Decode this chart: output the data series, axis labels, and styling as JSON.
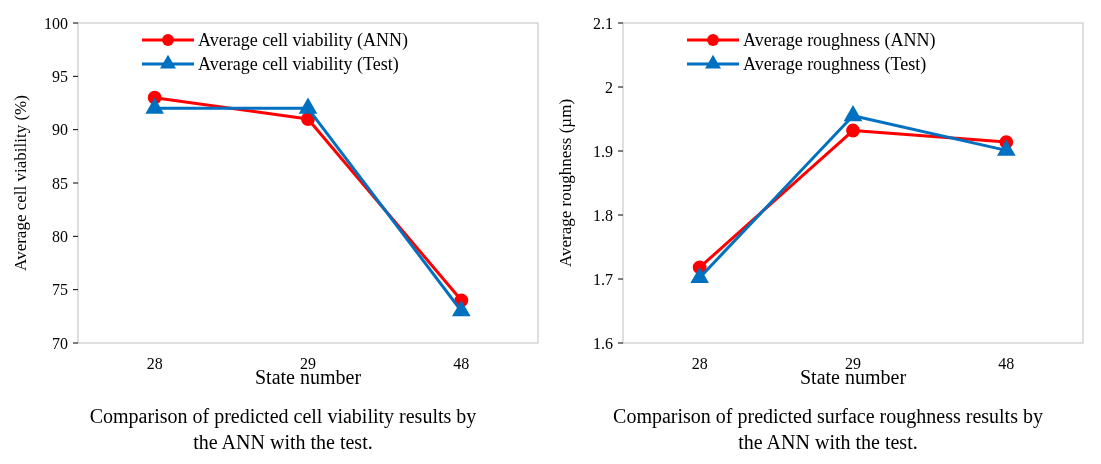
{
  "chart_data": [
    {
      "type": "line",
      "xlabel": "State number",
      "ylabel": "Average cell viability (%)",
      "categories": [
        "28",
        "29",
        "48"
      ],
      "ylim": [
        70,
        100
      ],
      "yticks": [
        70,
        75,
        80,
        85,
        90,
        95,
        100
      ],
      "grid": false,
      "legend": "top",
      "annotations": [
        "Comparison of predicted cell viability results by the ANN with the test."
      ],
      "series": [
        {
          "name": "Average cell viability (ANN)",
          "color": "#ff0000",
          "marker": "circle",
          "values": [
            93,
            91,
            74
          ]
        },
        {
          "name": "Average cell viability (Test)",
          "color": "#0070c0",
          "marker": "triangle",
          "values": [
            92,
            92,
            73
          ]
        }
      ]
    },
    {
      "type": "line",
      "xlabel": "State number",
      "ylabel": "Average roughness (µm)",
      "categories": [
        "28",
        "29",
        "48"
      ],
      "ylim": [
        1.6,
        2.1
      ],
      "yticks": [
        1.6,
        1.7,
        1.8,
        1.9,
        2,
        2.1
      ],
      "grid": false,
      "legend": "top",
      "annotations": [
        "Comparison of predicted surface roughness results by the ANN with the test."
      ],
      "series": [
        {
          "name": "Average roughness (ANN)",
          "color": "#ff0000",
          "marker": "circle",
          "values": [
            1.718,
            1.932,
            1.914
          ]
        },
        {
          "name": "Average roughness (Test)",
          "color": "#0070c0",
          "marker": "triangle",
          "values": [
            1.702,
            1.955,
            1.901
          ]
        }
      ]
    }
  ]
}
